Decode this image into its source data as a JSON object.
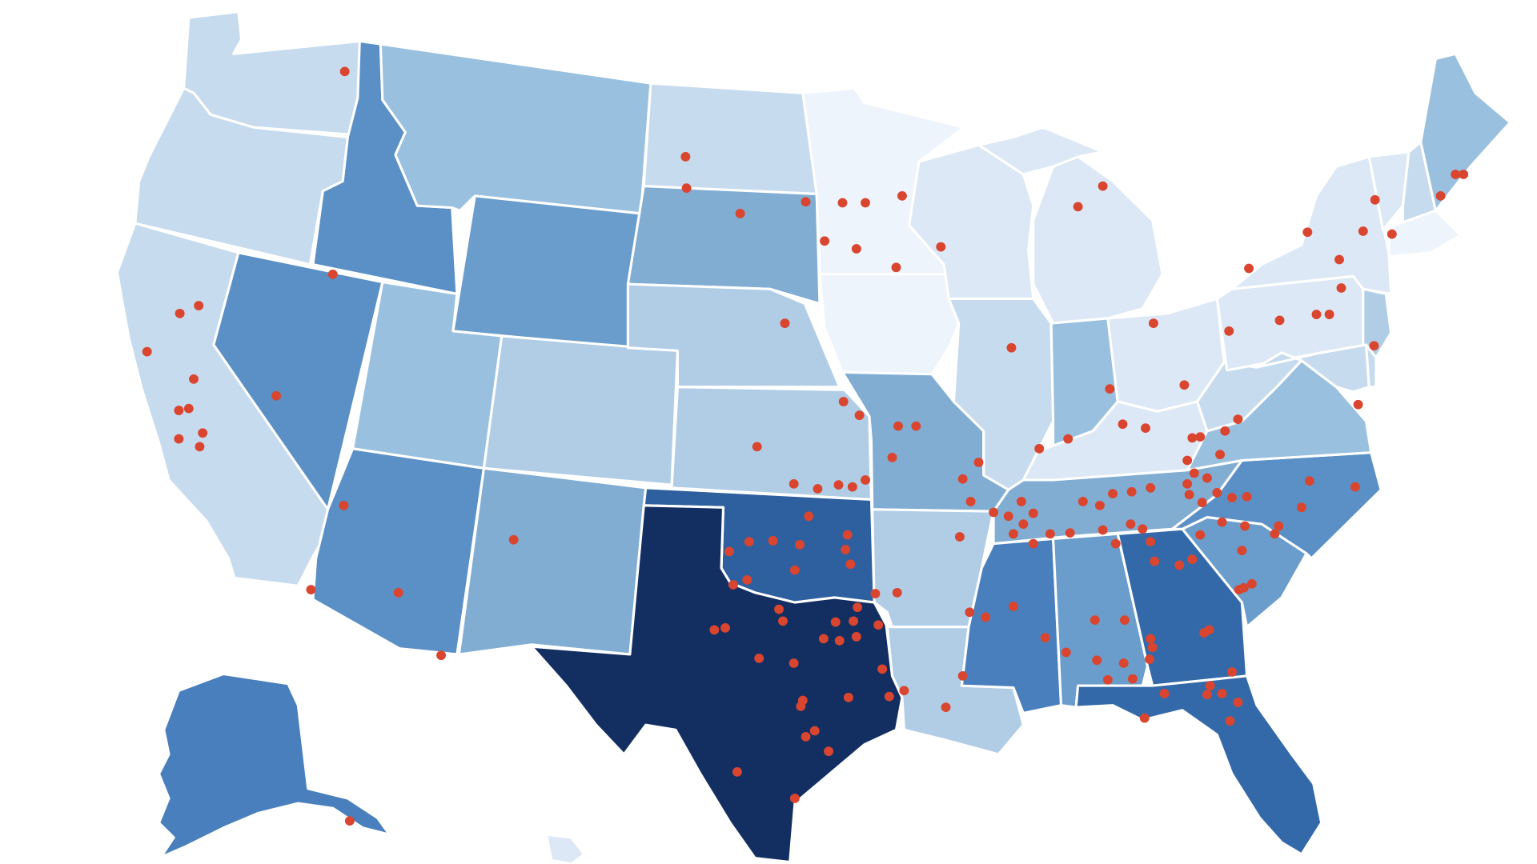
{
  "map": {
    "type": "choropleth-with-markers",
    "region": "United States",
    "legend": "none",
    "labels": "none",
    "marker_color": "#d9452f",
    "color_scale": [
      "#eef4fb",
      "#dce8f5",
      "#c7dbee",
      "#b1cde6",
      "#9ac0df",
      "#81add3",
      "#6a9dcb",
      "#5b90c6",
      "#4a7fbd",
      "#3469a9",
      "#2e5f9f",
      "#1b3b73",
      "#132f62"
    ]
  },
  "chart_data": {
    "type": "choropleth",
    "states": [
      {
        "id": "WA",
        "level": 2
      },
      {
        "id": "OR",
        "level": 2
      },
      {
        "id": "CA",
        "level": 2
      },
      {
        "id": "ID",
        "level": 7
      },
      {
        "id": "NV",
        "level": 7
      },
      {
        "id": "MT",
        "level": 4
      },
      {
        "id": "WY",
        "level": 6
      },
      {
        "id": "UT",
        "level": 4
      },
      {
        "id": "CO",
        "level": 3
      },
      {
        "id": "AZ",
        "level": 7
      },
      {
        "id": "NM",
        "level": 5
      },
      {
        "id": "ND",
        "level": 2
      },
      {
        "id": "SD",
        "level": 5
      },
      {
        "id": "NE",
        "level": 3
      },
      {
        "id": "KS",
        "level": 3
      },
      {
        "id": "OK",
        "level": 10
      },
      {
        "id": "TX",
        "level": 12
      },
      {
        "id": "MN",
        "level": 0
      },
      {
        "id": "IA",
        "level": 0
      },
      {
        "id": "MO",
        "level": 5
      },
      {
        "id": "AR",
        "level": 3
      },
      {
        "id": "LA",
        "level": 3
      },
      {
        "id": "WI",
        "level": 1
      },
      {
        "id": "IL",
        "level": 2
      },
      {
        "id": "MI",
        "level": 1
      },
      {
        "id": "IN",
        "level": 4
      },
      {
        "id": "OH",
        "level": 1
      },
      {
        "id": "KY",
        "level": 1
      },
      {
        "id": "TN",
        "level": 5
      },
      {
        "id": "MS",
        "level": 8
      },
      {
        "id": "AL",
        "level": 6
      },
      {
        "id": "GA",
        "level": 9
      },
      {
        "id": "FL",
        "level": 9
      },
      {
        "id": "SC",
        "level": 6
      },
      {
        "id": "NC",
        "level": 7
      },
      {
        "id": "VA",
        "level": 4
      },
      {
        "id": "WV",
        "level": 2
      },
      {
        "id": "PA",
        "level": 1
      },
      {
        "id": "NY",
        "level": 1
      },
      {
        "id": "VT",
        "level": 1
      },
      {
        "id": "NH",
        "level": 2
      },
      {
        "id": "ME",
        "level": 4
      },
      {
        "id": "MA",
        "level": 0
      },
      {
        "id": "NJ",
        "level": 3
      },
      {
        "id": "MD",
        "level": 2
      },
      {
        "id": "DE",
        "level": 2
      },
      {
        "id": "AK",
        "level": 8
      },
      {
        "id": "HI",
        "level": 1
      }
    ]
  }
}
